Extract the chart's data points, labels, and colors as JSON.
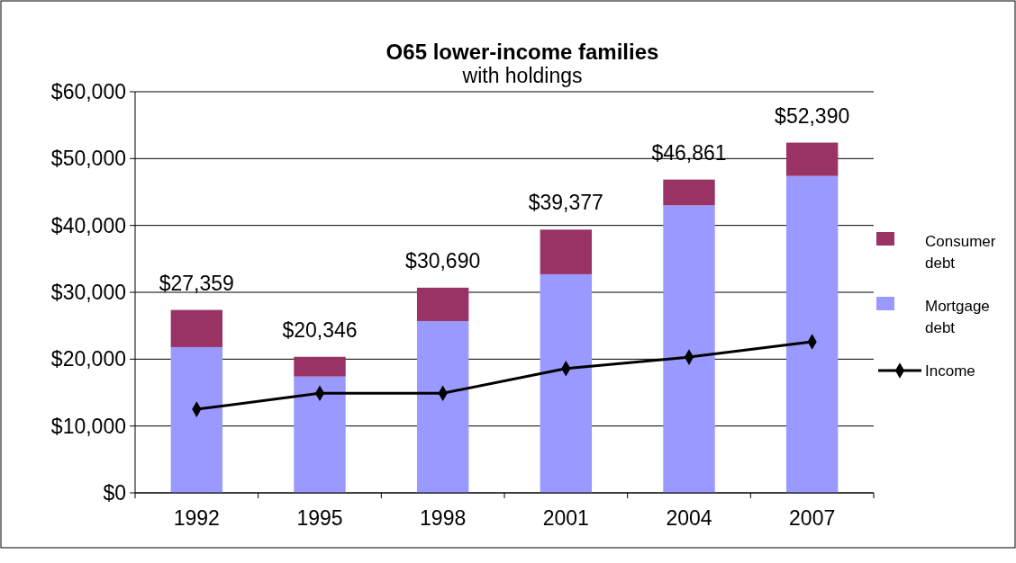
{
  "chart_data": {
    "type": "bar",
    "title": "O65 lower-income families",
    "subtitle": "with holdings",
    "categories": [
      "1992",
      "1995",
      "1998",
      "2001",
      "2004",
      "2007"
    ],
    "stacked": true,
    "series": [
      {
        "name": "Mortgage debt",
        "color": "#9999ff",
        "values": [
          21800,
          17400,
          25700,
          32700,
          43000,
          47400
        ]
      },
      {
        "name": "Consumer debt",
        "color": "#993366",
        "values": [
          5559,
          2946,
          4990,
          6677,
          3861,
          4990
        ]
      },
      {
        "name": "Income",
        "type": "line",
        "color": "#000000",
        "values": [
          12500,
          14900,
          14900,
          18600,
          20300,
          22600
        ],
        "marker": "diamond",
        "line_style": "solid"
      }
    ],
    "totals": [
      "$27,359",
      "$20,346",
      "$30,690",
      "$39,377",
      "$46,861",
      "$52,390"
    ],
    "ylim": [
      0,
      60000
    ],
    "yticks": [
      {
        "value": 0,
        "label": "$0"
      },
      {
        "value": 10000,
        "label": "$10,000"
      },
      {
        "value": 20000,
        "label": "$20,000"
      },
      {
        "value": 30000,
        "label": "$30,000"
      },
      {
        "value": 40000,
        "label": "$40,000"
      },
      {
        "value": 50000,
        "label": "$50,000"
      },
      {
        "value": 60000,
        "label": "$60,000"
      }
    ],
    "grid": "y",
    "legend": "right"
  }
}
